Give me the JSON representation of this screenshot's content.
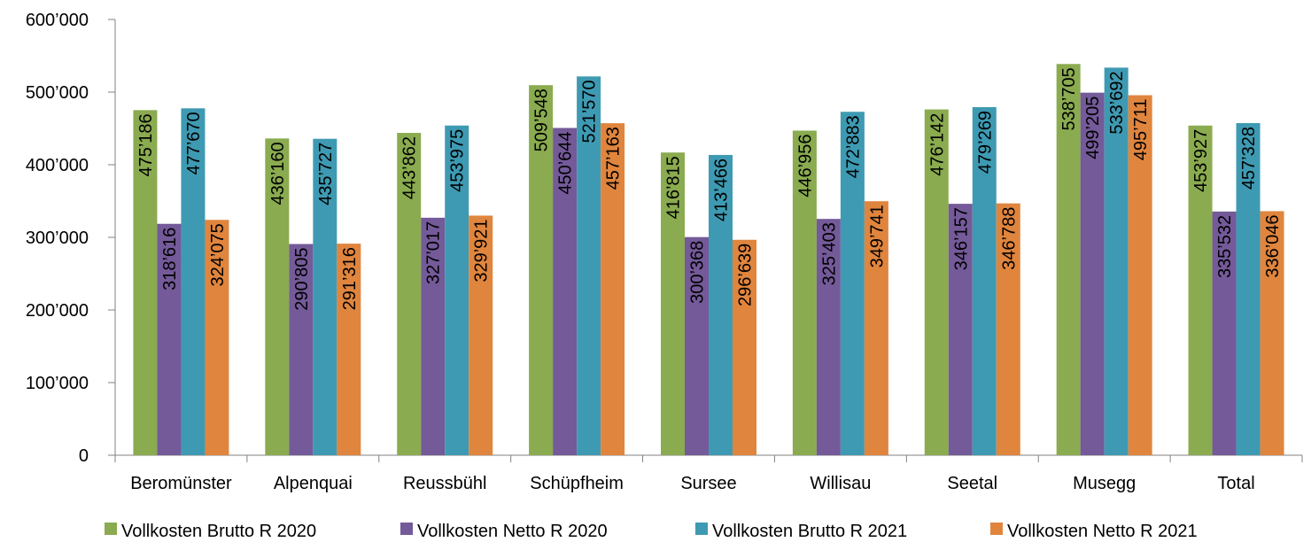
{
  "chart_data": {
    "type": "bar",
    "categories": [
      "Beromünster",
      "Alpenquai",
      "Reussbühl",
      "Schüpfheim",
      "Sursee",
      "Willisau",
      "Seetal",
      "Musegg",
      "Total"
    ],
    "series": [
      {
        "name": "Vollkosten Brutto R 2020",
        "color": "#8AAB4F",
        "values": [
          475186,
          436160,
          443862,
          509548,
          416815,
          446956,
          476142,
          538705,
          453927
        ],
        "labels": [
          "475’186",
          "436’160",
          "443’862",
          "509’548",
          "416’815",
          "446’956",
          "476’142",
          "538’705",
          "453’927"
        ]
      },
      {
        "name": "Vollkosten Netto R 2020",
        "color": "#745A99",
        "values": [
          318616,
          290805,
          327017,
          450644,
          300368,
          325403,
          346157,
          499205,
          335532
        ],
        "labels": [
          "318’616",
          "290’805",
          "327’017",
          "450’644",
          "300’368",
          "325’403",
          "346’157",
          "499’205",
          "335’532"
        ]
      },
      {
        "name": "Vollkosten Brutto R 2021",
        "color": "#3E9AB2",
        "values": [
          477670,
          435727,
          453975,
          521570,
          413466,
          472883,
          479269,
          533692,
          457328
        ],
        "labels": [
          "477’670",
          "435’727",
          "453’975",
          "521’570",
          "413’466",
          "472’883",
          "479’269",
          "533’692",
          "457’328"
        ]
      },
      {
        "name": "Vollkosten Netto R 2021",
        "color": "#E0853E",
        "values": [
          324075,
          291316,
          329921,
          457163,
          296639,
          349741,
          346788,
          495711,
          336046
        ],
        "labels": [
          "324’075",
          "291’316",
          "329’921",
          "457’163",
          "296’639",
          "349’741",
          "346’788",
          "495’711",
          "336’046"
        ]
      }
    ],
    "ylim": [
      0,
      600000
    ],
    "yticks": [
      0,
      100000,
      200000,
      300000,
      400000,
      500000,
      600000
    ],
    "ytick_labels": [
      "0",
      "100’000",
      "200’000",
      "300’000",
      "400’000",
      "500’000",
      "600’000"
    ],
    "grid": false,
    "legend_position": "bottom"
  }
}
